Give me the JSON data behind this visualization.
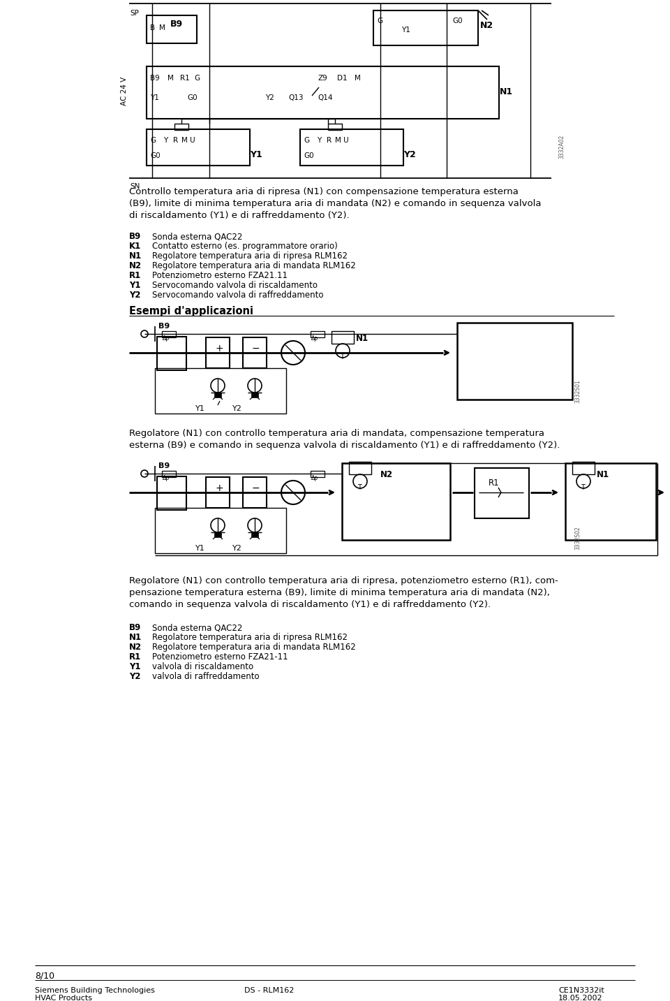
{
  "bg_color": "#ffffff",
  "section1_caption": "Controllo temperatura aria di ripresa (N1) con compensazione temperatura esterna\n(B9), limite di minima temperatura aria di mandata (N2) e comando in sequenza valvola\ndi riscaldamento (Y1) e di raffreddamento (Y2).",
  "section1_legend": [
    [
      "B9",
      "Sonda esterna QAC22"
    ],
    [
      "K1",
      "Contatto esterno (es. programmatore orario)"
    ],
    [
      "N1",
      "Regolatore temperatura aria di ripresa RLM162"
    ],
    [
      "N2",
      "Regolatore temperatura aria di mandata RLM162"
    ],
    [
      "R1",
      "Potenziometro esterno FZA21.11"
    ],
    [
      "Y1",
      "Servocomando valvola di riscaldamento"
    ],
    [
      "Y2",
      "Servocomando valvola di raffreddamento"
    ]
  ],
  "esempi_title": "Esempi d'applicazioni",
  "section2_caption": "Regolatore (N1) con controllo temperatura aria di mandata, compensazione temperatura\nesterna (B9) e comando in sequenza valvola di riscaldamento (Y1) e di raffreddamento (Y2).",
  "section3_caption": "Regolatore (N1) con controllo temperatura aria di ripresa, potenziometro esterno (R1), com-\npensazione temperatura esterna (B9), limite di minima temperatura aria di mandata (N2),\ncomando in sequenza valvola di riscaldamento (Y1) e di raffreddamento (Y2).",
  "section3_legend": [
    [
      "B9",
      "Sonda esterna QAC22"
    ],
    [
      "N1",
      "Regolatore temperatura aria di ripresa RLM162"
    ],
    [
      "N2",
      "Regolatore temperatura aria di mandata RLM162"
    ],
    [
      "R1",
      "Potenziometro esterno FZA21-11"
    ],
    [
      "Y1",
      "valvola di riscaldamento"
    ],
    [
      "Y2",
      "valvola di raffreddamento"
    ]
  ],
  "footer_page": "8/10",
  "footer_left1": "Siemens Building Technologies",
  "footer_left2": "HVAC Products",
  "footer_center": "DS - RLM162",
  "footer_right1": "CE1N3332it",
  "footer_right2": "18.05.2002"
}
